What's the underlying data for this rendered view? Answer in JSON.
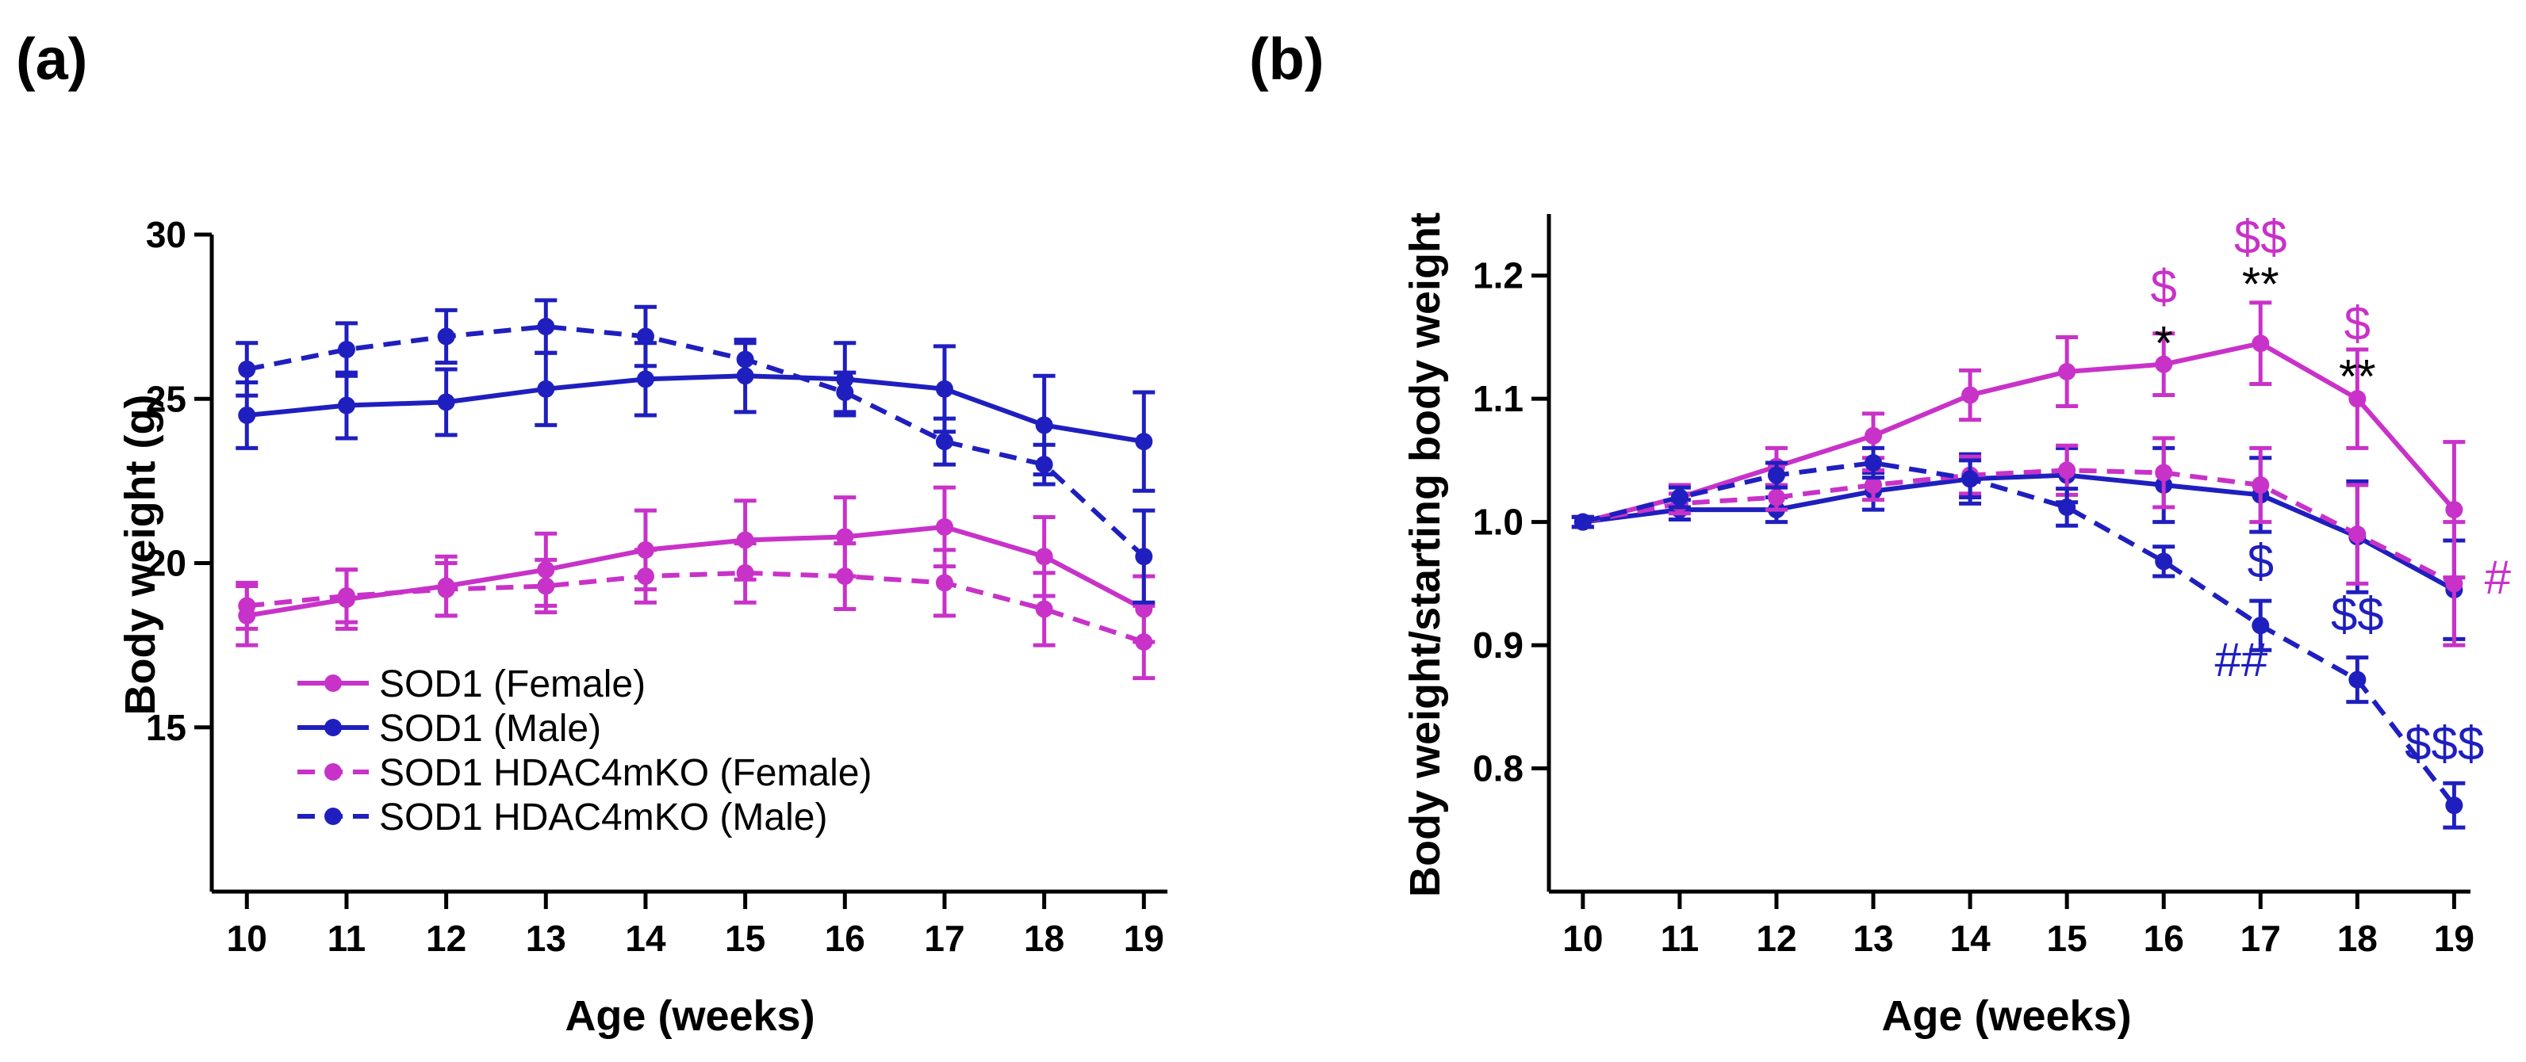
{
  "chart_data": [
    {
      "panel_label": "(a)",
      "type": "line",
      "xlabel": "Age (weeks)",
      "ylabel": "Body weight (g)",
      "x": [
        10,
        11,
        12,
        13,
        14,
        15,
        16,
        17,
        18,
        19
      ],
      "x_tick_labels": [
        "10",
        "11",
        "12",
        "13",
        "14",
        "15",
        "16",
        "17",
        "18",
        "19"
      ],
      "y_ticks": [
        15,
        20,
        25,
        30
      ],
      "y_tick_labels": [
        "15",
        "20",
        "25",
        "30"
      ],
      "xlim": [
        9.6,
        19.3
      ],
      "ylim": [
        10,
        30
      ],
      "legend_position": "bottom-left",
      "series": [
        {
          "name": "SOD1 (Female)",
          "color": "#c832c8",
          "style": "solid",
          "values": [
            18.4,
            18.9,
            19.3,
            19.8,
            20.4,
            20.7,
            20.8,
            21.1,
            20.2,
            18.6
          ],
          "errors": [
            0.9,
            0.9,
            0.9,
            1.1,
            1.2,
            1.2,
            1.2,
            1.2,
            1.2,
            1.0
          ]
        },
        {
          "name": "SOD1 (Male)",
          "color": "#1f1fbf",
          "style": "solid",
          "values": [
            24.5,
            24.8,
            24.9,
            25.3,
            25.6,
            25.7,
            25.6,
            25.3,
            24.2,
            23.7
          ],
          "errors": [
            1.0,
            1.0,
            1.0,
            1.1,
            1.1,
            1.1,
            1.1,
            1.3,
            1.5,
            1.5
          ]
        },
        {
          "name": "SOD1 HDAC4mKO (Female)",
          "color": "#c832c8",
          "style": "dashed",
          "values": [
            18.7,
            19.0,
            19.2,
            19.3,
            19.6,
            19.7,
            19.6,
            19.4,
            18.6,
            17.6
          ],
          "errors": [
            0.7,
            0.8,
            0.8,
            0.8,
            0.8,
            0.9,
            1.0,
            1.0,
            1.1,
            1.1
          ]
        },
        {
          "name": "SOD1 HDAC4mKO (Male)",
          "color": "#1f1fbf",
          "style": "dashed",
          "values": [
            25.9,
            26.5,
            26.9,
            27.2,
            26.9,
            26.2,
            25.2,
            23.7,
            23.0,
            20.2
          ],
          "errors": [
            0.8,
            0.8,
            0.8,
            0.8,
            0.9,
            0.5,
            0.6,
            0.7,
            0.6,
            1.4
          ]
        }
      ]
    },
    {
      "panel_label": "(b)",
      "type": "line",
      "xlabel": "Age (weeks)",
      "ylabel": "Body weight/starting body weight",
      "x": [
        10,
        11,
        12,
        13,
        14,
        15,
        16,
        17,
        18,
        19
      ],
      "x_tick_labels": [
        "10",
        "11",
        "12",
        "13",
        "14",
        "15",
        "16",
        "17",
        "18",
        "19"
      ],
      "y_ticks": [
        0.8,
        0.9,
        1.0,
        1.1,
        1.2
      ],
      "y_tick_labels": [
        "0.8",
        "0.9",
        "1.0",
        "1.1",
        "1.2"
      ],
      "xlim": [
        9.6,
        19.3
      ],
      "ylim": [
        0.7,
        1.25
      ],
      "series": [
        {
          "name": "SOD1 (Female)",
          "color": "#c832c8",
          "style": "solid",
          "values": [
            1.0,
            1.02,
            1.045,
            1.07,
            1.103,
            1.122,
            1.128,
            1.145,
            1.1,
            1.01
          ],
          "errors": [
            0.004,
            0.01,
            0.015,
            0.018,
            0.02,
            0.028,
            0.025,
            0.033,
            0.04,
            0.055
          ]
        },
        {
          "name": "SOD1 (Male)",
          "color": "#1f1fbf",
          "style": "solid",
          "values": [
            1.0,
            1.01,
            1.01,
            1.025,
            1.035,
            1.038,
            1.03,
            1.022,
            0.988,
            0.945
          ],
          "errors": [
            0.004,
            0.008,
            0.01,
            0.015,
            0.02,
            0.022,
            0.03,
            0.03,
            0.045,
            0.04
          ]
        },
        {
          "name": "SOD1 HDAC4mKO (Female)",
          "color": "#c832c8",
          "style": "dashed",
          "values": [
            1.0,
            1.015,
            1.02,
            1.03,
            1.038,
            1.042,
            1.04,
            1.03,
            0.99,
            0.95
          ],
          "errors": [
            0.004,
            0.008,
            0.01,
            0.012,
            0.015,
            0.02,
            0.028,
            0.03,
            0.04,
            0.05
          ]
        },
        {
          "name": "SOD1 HDAC4mKO (Male)",
          "color": "#1f1fbf",
          "style": "dashed",
          "values": [
            1.0,
            1.02,
            1.038,
            1.048,
            1.035,
            1.012,
            0.968,
            0.916,
            0.872,
            0.77
          ],
          "errors": [
            0.004,
            0.008,
            0.01,
            0.012,
            0.015,
            0.015,
            0.012,
            0.02,
            0.018,
            0.018
          ]
        }
      ],
      "annotations": [
        {
          "text": "$",
          "x": 16,
          "y": 1.178,
          "color": "#c832c8"
        },
        {
          "text": "*",
          "x": 16,
          "y": 1.132,
          "color": "#000000"
        },
        {
          "text": "$$",
          "x": 17,
          "y": 1.218,
          "color": "#c832c8"
        },
        {
          "text": "**",
          "x": 17,
          "y": 1.18,
          "color": "#000000"
        },
        {
          "text": "$",
          "x": 18,
          "y": 1.148,
          "color": "#c832c8"
        },
        {
          "text": "**",
          "x": 18,
          "y": 1.105,
          "color": "#000000"
        },
        {
          "text": "#",
          "x": 19.45,
          "y": 0.942,
          "color": "#c832c8"
        },
        {
          "text": "$",
          "x": 17,
          "y": 0.955,
          "color": "#1f1fbf"
        },
        {
          "text": "$$",
          "x": 18,
          "y": 0.912,
          "color": "#1f1fbf"
        },
        {
          "text": "##",
          "x": 16.8,
          "y": 0.875,
          "color": "#1f1fbf"
        },
        {
          "text": "$$$",
          "x": 18.9,
          "y": 0.807,
          "color": "#1f1fbf"
        }
      ]
    }
  ]
}
